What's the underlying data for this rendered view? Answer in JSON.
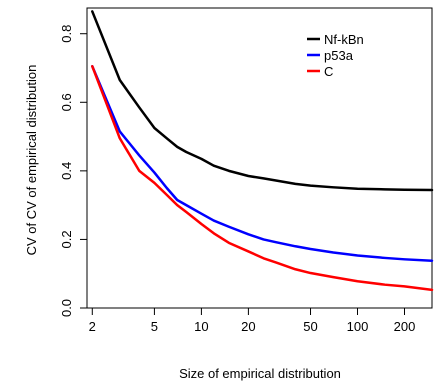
{
  "chart_data": {
    "type": "line",
    "xlabel": "Size of empirical distribution",
    "ylabel": "CV of CV of empirical distribution",
    "x_scale": "log",
    "xlim": [
      1.85,
      300
    ],
    "ylim": [
      0,
      0.875
    ],
    "x_ticks": [
      2,
      5,
      10,
      20,
      50,
      100,
      200
    ],
    "y_ticks": [
      0.0,
      0.2,
      0.4,
      0.6,
      0.8
    ],
    "y_tick_labels": [
      "0.0",
      "0.2",
      "0.4",
      "0.6",
      "0.8"
    ],
    "grid": false,
    "legend_position": "top-right",
    "series": [
      {
        "name": "Nf-kBn",
        "color": "#000000",
        "x": [
          2,
          3,
          4,
          5,
          6,
          7,
          8,
          10,
          12,
          15,
          20,
          25,
          30,
          40,
          50,
          70,
          100,
          150,
          200,
          300
        ],
        "y": [
          0.865,
          0.665,
          0.585,
          0.525,
          0.495,
          0.47,
          0.455,
          0.435,
          0.415,
          0.4,
          0.385,
          0.378,
          0.372,
          0.362,
          0.357,
          0.352,
          0.348,
          0.346,
          0.345,
          0.344
        ]
      },
      {
        "name": "p53a",
        "color": "#0000ff",
        "x": [
          2,
          3,
          4,
          5,
          6,
          7,
          8,
          10,
          12,
          15,
          20,
          25,
          30,
          40,
          50,
          70,
          100,
          150,
          200,
          300
        ],
        "y": [
          0.705,
          0.515,
          0.445,
          0.395,
          0.35,
          0.315,
          0.3,
          0.275,
          0.255,
          0.237,
          0.215,
          0.2,
          0.192,
          0.18,
          0.172,
          0.162,
          0.153,
          0.146,
          0.142,
          0.138
        ]
      },
      {
        "name": "C",
        "color": "#ff0000",
        "x": [
          2,
          3,
          4,
          5,
          6,
          7,
          8,
          10,
          12,
          15,
          20,
          25,
          30,
          40,
          50,
          70,
          100,
          150,
          200,
          300
        ],
        "y": [
          0.705,
          0.495,
          0.4,
          0.365,
          0.33,
          0.3,
          0.28,
          0.245,
          0.218,
          0.19,
          0.165,
          0.145,
          0.133,
          0.113,
          0.102,
          0.09,
          0.078,
          0.068,
          0.063,
          0.053
        ]
      }
    ]
  }
}
